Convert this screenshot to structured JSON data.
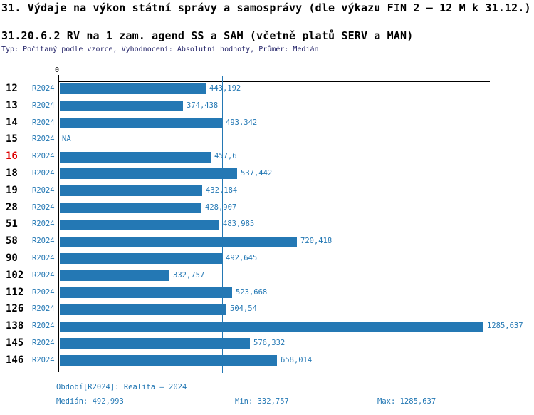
{
  "header": {
    "title": "31. Výdaje na výkon státní správy a samosprávy (dle výkazu FIN 2 – 12 M k 31.12.)",
    "subtitle": "31.20.6.2 RV na 1 zam. agend SS a SAM (včetně platů SERV a MAN)",
    "meta_line": "Typ: Počítaný podle vzorce, Vyhodnocení: Absolutní hodnoty, Průměr: Medián"
  },
  "axis": {
    "zero_tick_label": "0"
  },
  "chart_data": {
    "type": "bar",
    "orientation": "horizontal",
    "title": "31.20.6.2 RV na 1 zam. agend SS a SAM (včetně platů SERV a MAN)",
    "series_name": "R2024",
    "x_min": 0,
    "x_max_value": 1285.637,
    "median_value": 492.993,
    "grid": false,
    "median_line": true,
    "categories": [
      "12",
      "13",
      "14",
      "15",
      "16",
      "18",
      "19",
      "28",
      "51",
      "58",
      "90",
      "102",
      "112",
      "126",
      "138",
      "145",
      "146"
    ],
    "rows": [
      {
        "id": "12",
        "series": "R2024",
        "value": 443.192,
        "label": "443,192",
        "highlight": false
      },
      {
        "id": "13",
        "series": "R2024",
        "value": 374.438,
        "label": "374,438",
        "highlight": false
      },
      {
        "id": "14",
        "series": "R2024",
        "value": 493.342,
        "label": "493,342",
        "highlight": false
      },
      {
        "id": "15",
        "series": "R2024",
        "value": null,
        "label": "NA",
        "highlight": false
      },
      {
        "id": "16",
        "series": "R2024",
        "value": 457.6,
        "label": "457,6",
        "highlight": true
      },
      {
        "id": "18",
        "series": "R2024",
        "value": 537.442,
        "label": "537,442",
        "highlight": false
      },
      {
        "id": "19",
        "series": "R2024",
        "value": 432.184,
        "label": "432,184",
        "highlight": false
      },
      {
        "id": "28",
        "series": "R2024",
        "value": 428.907,
        "label": "428,907",
        "highlight": false
      },
      {
        "id": "51",
        "series": "R2024",
        "value": 483.985,
        "label": "483,985",
        "highlight": false
      },
      {
        "id": "58",
        "series": "R2024",
        "value": 720.418,
        "label": "720,418",
        "highlight": false
      },
      {
        "id": "90",
        "series": "R2024",
        "value": 492.645,
        "label": "492,645",
        "highlight": false
      },
      {
        "id": "102",
        "series": "R2024",
        "value": 332.757,
        "label": "332,757",
        "highlight": false
      },
      {
        "id": "112",
        "series": "R2024",
        "value": 523.668,
        "label": "523,668",
        "highlight": false
      },
      {
        "id": "126",
        "series": "R2024",
        "value": 504.54,
        "label": "504,54",
        "highlight": false
      },
      {
        "id": "138",
        "series": "R2024",
        "value": 1285.637,
        "label": "1285,637",
        "highlight": false
      },
      {
        "id": "145",
        "series": "R2024",
        "value": 576.332,
        "label": "576,332",
        "highlight": false
      },
      {
        "id": "146",
        "series": "R2024",
        "value": 658.014,
        "label": "658,014",
        "highlight": false
      }
    ]
  },
  "footer": {
    "period": "Období[R2024]: Realita – 2024",
    "median_label": "Medián: 492,993",
    "min_label": "Min: 332,757",
    "max_label": "Max: 1285,637"
  },
  "colors": {
    "bar_blue": "#2478b4",
    "text_blue": "#2478b4",
    "highlight_red": "#dd0000",
    "meta_navy": "#26266a",
    "axis_black": "#000000"
  }
}
